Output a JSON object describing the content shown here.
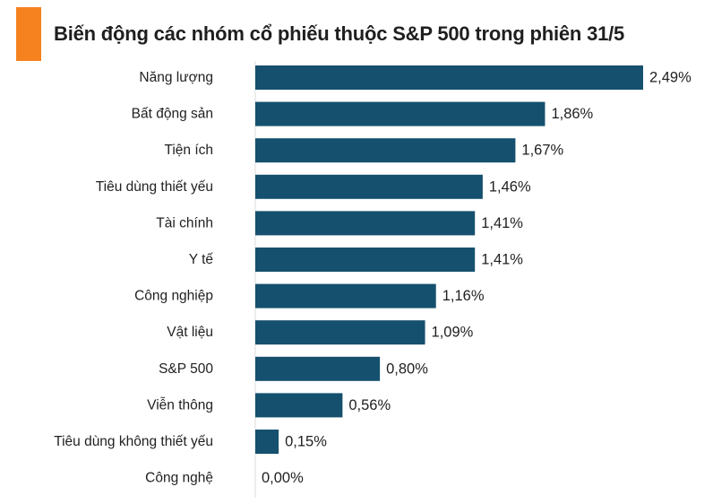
{
  "title": "Biến động các nhóm cổ phiếu thuộc S&P 500 trong phiên 31/5",
  "colors": {
    "accent": "#f5821f",
    "bar": "#15506e",
    "axis": "#dcdcdc"
  },
  "chart_data": {
    "type": "bar",
    "orientation": "horizontal",
    "title": "Biến động các nhóm cổ phiếu thuộc S&P 500 trong phiên 31/5",
    "xlabel": "",
    "ylabel": "",
    "unit": "%",
    "xlim": [
      0,
      2.49
    ],
    "grid": false,
    "categories": [
      "Năng lượng",
      "Bất động sản",
      "Tiện ích",
      "Tiêu dùng thiết yếu",
      "Tài chính",
      "Y tế",
      "Công nghiệp",
      "Vật liệu",
      "S&P 500",
      "Viễn thông",
      "Tiêu dùng không thiết yếu",
      "Công nghệ"
    ],
    "values": [
      2.49,
      1.86,
      1.67,
      1.46,
      1.41,
      1.41,
      1.16,
      1.09,
      0.8,
      0.56,
      0.15,
      0.0
    ],
    "data_labels": [
      "2,49%",
      "1,86%",
      "1,67%",
      "1,46%",
      "1,41%",
      "1,41%",
      "1,16%",
      "1,09%",
      "0,80%",
      "0,56%",
      "0,15%",
      "0,00%"
    ]
  }
}
